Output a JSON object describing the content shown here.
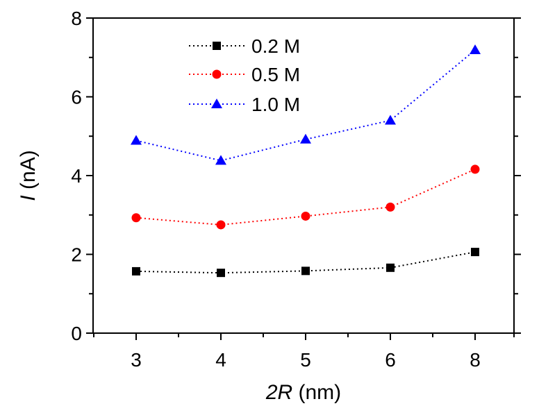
{
  "chart_data": {
    "type": "line",
    "x": [
      "3",
      "4",
      "5",
      "6",
      "8"
    ],
    "series": [
      {
        "name": "0.2 M",
        "values": [
          1.57,
          1.53,
          1.58,
          1.66,
          2.06
        ],
        "color": "#000000",
        "marker": "square"
      },
      {
        "name": "0.5 M",
        "values": [
          2.93,
          2.75,
          2.97,
          3.2,
          4.16
        ],
        "color": "#ff0000",
        "marker": "circle"
      },
      {
        "name": "1.0 M",
        "values": [
          4.89,
          4.38,
          4.92,
          5.4,
          7.19
        ],
        "color": "#0000ff",
        "marker": "triangle"
      }
    ],
    "xlabel": {
      "italic": "2R",
      "rest": " (nm)"
    },
    "ylabel": {
      "italic": "I",
      "rest": " (nA)"
    },
    "ylim": [
      0,
      8
    ],
    "yticks": [
      "0",
      "2",
      "4",
      "6",
      "8"
    ],
    "line_style": "dotted",
    "grid": false,
    "legend_position": "top-left"
  }
}
